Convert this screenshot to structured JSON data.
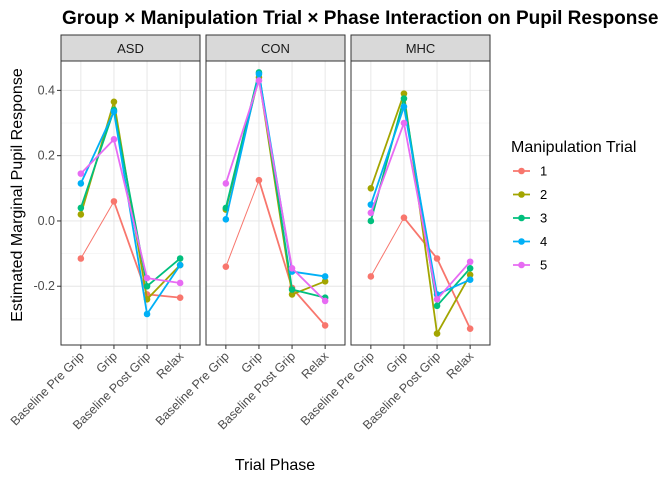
{
  "chart_data": {
    "type": "line",
    "title": "Group × Manipulation Trial × Phase Interaction on Pupil Response",
    "xlabel": "Trial Phase",
    "ylabel": "Estimated Marginal Pupil Response",
    "categories": [
      "Baseline Pre Grip",
      "Grip",
      "Baseline Post Grip",
      "Relax"
    ],
    "yticks": [
      -0.2,
      0.0,
      0.2,
      0.4
    ],
    "ytick_labels": [
      "-0.2",
      "0.0",
      "0.2",
      "0.4"
    ],
    "ylim": [
      -0.38,
      0.49
    ],
    "grid": true,
    "legend_title": "Manipulation Trial",
    "legend_position": "right",
    "series_colors": {
      "1": "#F8766D",
      "2": "#A3A500",
      "3": "#00BF7D",
      "4": "#00B0F6",
      "5": "#E76BF3"
    },
    "panels": [
      {
        "group": "ASD",
        "series": [
          {
            "name": "1",
            "values": [
              -0.115,
              0.06,
              -0.225,
              -0.235
            ]
          },
          {
            "name": "2",
            "values": [
              0.02,
              0.365,
              -0.24,
              -0.135
            ]
          },
          {
            "name": "3",
            "values": [
              0.04,
              0.34,
              -0.2,
              -0.115
            ]
          },
          {
            "name": "4",
            "values": [
              0.115,
              0.335,
              -0.285,
              -0.135
            ]
          },
          {
            "name": "5",
            "values": [
              0.145,
              0.25,
              -0.175,
              -0.19
            ]
          }
        ]
      },
      {
        "group": "CON",
        "series": [
          {
            "name": "1",
            "values": [
              -0.14,
              0.125,
              -0.205,
              -0.32
            ]
          },
          {
            "name": "2",
            "values": [
              0.035,
              0.44,
              -0.225,
              -0.185
            ]
          },
          {
            "name": "3",
            "values": [
              0.04,
              0.455,
              -0.21,
              -0.235
            ]
          },
          {
            "name": "4",
            "values": [
              0.005,
              0.45,
              -0.155,
              -0.17
            ]
          },
          {
            "name": "5",
            "values": [
              0.115,
              0.43,
              -0.145,
              -0.245
            ]
          }
        ]
      },
      {
        "group": "MHC",
        "series": [
          {
            "name": "1",
            "values": [
              -0.17,
              0.01,
              -0.115,
              -0.33
            ]
          },
          {
            "name": "2",
            "values": [
              0.1,
              0.39,
              -0.345,
              -0.165
            ]
          },
          {
            "name": "3",
            "values": [
              0.0,
              0.375,
              -0.26,
              -0.145
            ]
          },
          {
            "name": "4",
            "values": [
              0.05,
              0.35,
              -0.225,
              -0.18
            ]
          },
          {
            "name": "5",
            "values": [
              0.025,
              0.3,
              -0.24,
              -0.125
            ]
          }
        ]
      }
    ]
  }
}
